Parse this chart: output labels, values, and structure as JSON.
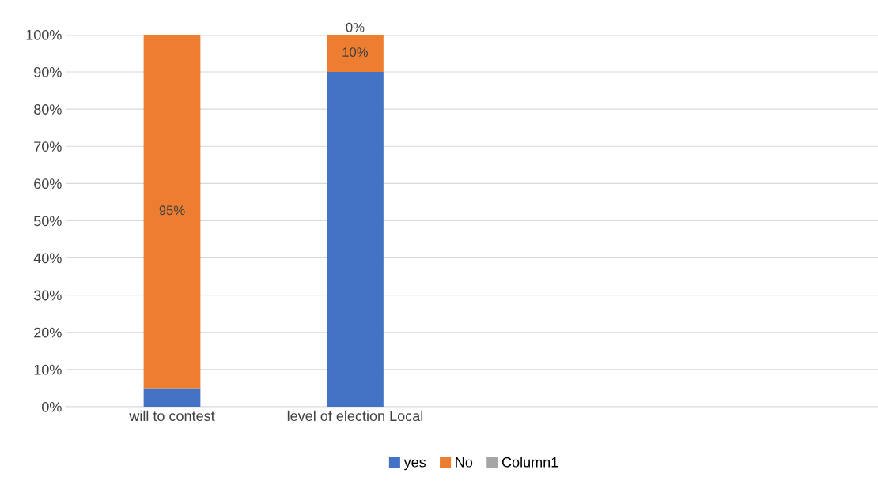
{
  "chart_data": {
    "type": "bar",
    "stacked": true,
    "categories": [
      "will to contest",
      "level of election Local",
      null,
      null
    ],
    "series": [
      {
        "name": "yes",
        "color": "#4472c4",
        "values": [
          5,
          90,
          null,
          null
        ],
        "value_labels": [
          null,
          null,
          null,
          null
        ]
      },
      {
        "name": "No",
        "color": "#ed7d31",
        "values": [
          95,
          10,
          null,
          null
        ],
        "value_labels": [
          "95%",
          "10%",
          null,
          null
        ]
      },
      {
        "name": "Column1",
        "color": "#a5a5a5",
        "values": [
          null,
          0,
          null,
          null
        ],
        "value_labels": [
          null,
          "0%",
          null,
          null
        ]
      }
    ],
    "ylim": [
      0,
      100
    ],
    "yticks": [
      {
        "value": 0,
        "label": "0%"
      },
      {
        "value": 10,
        "label": "10%"
      },
      {
        "value": 20,
        "label": "20%"
      },
      {
        "value": 30,
        "label": "30%"
      },
      {
        "value": 40,
        "label": "40%"
      },
      {
        "value": 50,
        "label": "50%"
      },
      {
        "value": 60,
        "label": "60%"
      },
      {
        "value": 70,
        "label": "70%"
      },
      {
        "value": 80,
        "label": "80%"
      },
      {
        "value": 90,
        "label": "90%"
      },
      {
        "value": 100,
        "label": "100%"
      }
    ],
    "grid": "y",
    "legend": "bottom"
  }
}
